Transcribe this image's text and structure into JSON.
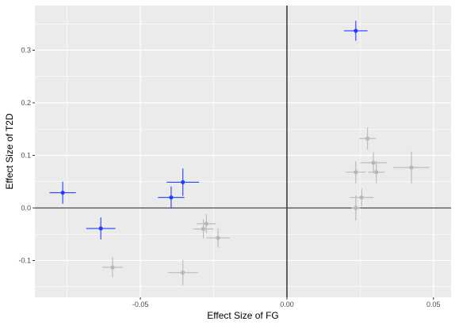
{
  "chart_data": {
    "type": "scatter",
    "title": "",
    "xlabel": "Effect Size of FG",
    "ylabel": "Effect Size of T2D",
    "xlim": [
      -0.086,
      0.056
    ],
    "ylim": [
      -0.17,
      0.385
    ],
    "x_ticks": [
      -0.05,
      0.0,
      0.05
    ],
    "x_tick_labels": [
      "-0.05",
      "0.00",
      "0.05"
    ],
    "y_ticks": [
      -0.1,
      0.0,
      0.1,
      0.2,
      0.3
    ],
    "y_tick_labels": [
      "-0.1",
      "0.0",
      "0.1",
      "0.2",
      "0.3"
    ],
    "grid": true,
    "reference_lines": {
      "x": 0,
      "y": 0
    },
    "colors": {
      "highlighted": "#1f3fff",
      "other": "#b7b7b7",
      "panel": "#ebebeb",
      "grid": "#ffffff",
      "reference": "#000000"
    },
    "series": [
      {
        "group": "highlighted",
        "points": [
          {
            "x": -0.0765,
            "y": 0.029,
            "xerr": 0.0045,
            "yerr": 0.021
          },
          {
            "x": -0.0635,
            "y": -0.039,
            "xerr": 0.005,
            "yerr": 0.021
          },
          {
            "x": -0.0395,
            "y": 0.02,
            "xerr": 0.0045,
            "yerr": 0.021
          },
          {
            "x": -0.0355,
            "y": 0.049,
            "xerr": 0.0055,
            "yerr": 0.026
          },
          {
            "x": 0.0235,
            "y": 0.337,
            "xerr": 0.004,
            "yerr": 0.019
          }
        ]
      },
      {
        "group": "other",
        "points": [
          {
            "x": -0.0595,
            "y": -0.113,
            "xerr": 0.0035,
            "yerr": 0.019
          },
          {
            "x": -0.0355,
            "y": -0.123,
            "xerr": 0.0052,
            "yerr": 0.024
          },
          {
            "x": -0.0285,
            "y": -0.04,
            "xerr": 0.0035,
            "yerr": 0.018
          },
          {
            "x": -0.0275,
            "y": -0.03,
            "xerr": 0.0033,
            "yerr": 0.018
          },
          {
            "x": -0.0235,
            "y": -0.057,
            "xerr": 0.004,
            "yerr": 0.018
          },
          {
            "x": 0.0235,
            "y": 0.068,
            "xerr": 0.0035,
            "yerr": 0.021
          },
          {
            "x": 0.0275,
            "y": 0.132,
            "xerr": 0.0028,
            "yerr": 0.021
          },
          {
            "x": 0.0295,
            "y": 0.086,
            "xerr": 0.0045,
            "yerr": 0.02
          },
          {
            "x": 0.0305,
            "y": 0.068,
            "xerr": 0.0028,
            "yerr": 0.021
          },
          {
            "x": 0.0425,
            "y": 0.077,
            "xerr": 0.0062,
            "yerr": 0.03
          },
          {
            "x": 0.0255,
            "y": 0.02,
            "xerr": 0.004,
            "yerr": 0.017
          },
          {
            "x": 0.0235,
            "y": 0.0,
            "xerr": 0.0015,
            "yerr": 0.024
          }
        ]
      }
    ]
  }
}
